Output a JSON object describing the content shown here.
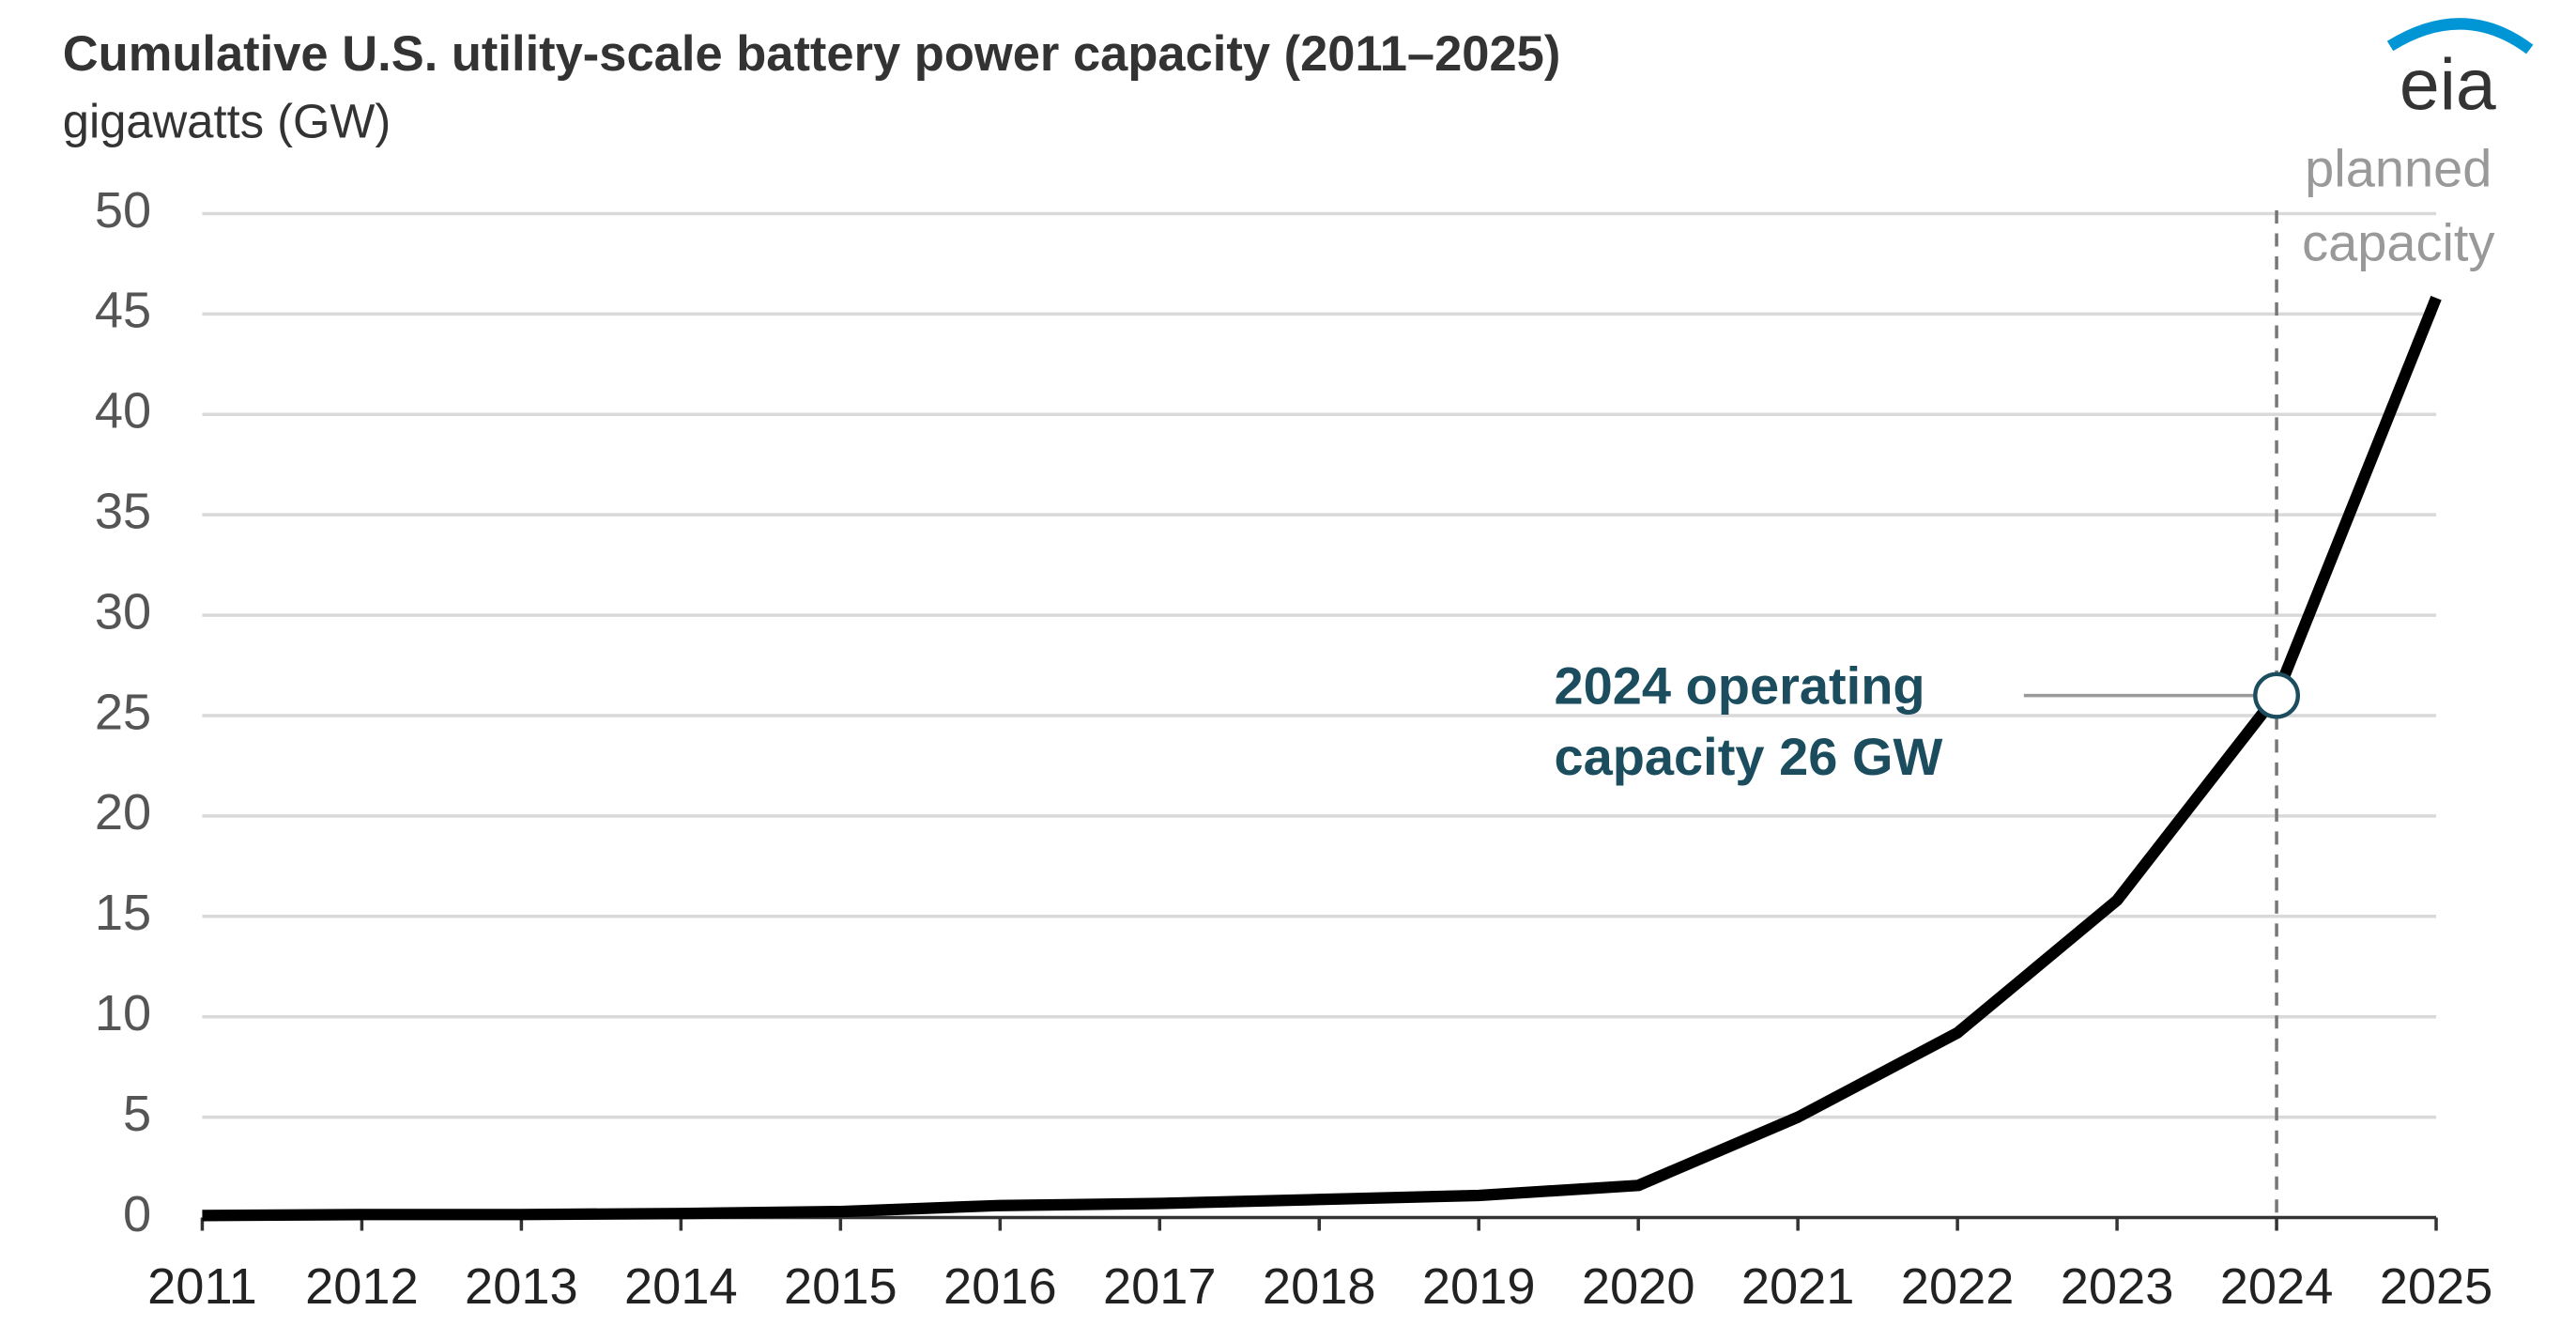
{
  "chart_data": {
    "type": "line",
    "title": "Cumulative U.S. utility-scale battery power capacity (2011–2025)",
    "subtitle": "gigawatts (GW)",
    "logo": "eia",
    "x": [
      2011,
      2012,
      2013,
      2014,
      2015,
      2016,
      2017,
      2018,
      2019,
      2020,
      2021,
      2022,
      2023,
      2024,
      2025
    ],
    "values": [
      0.1,
      0.15,
      0.15,
      0.2,
      0.3,
      0.6,
      0.7,
      0.9,
      1.1,
      1.6,
      5,
      9.2,
      15.8,
      26,
      45.8
    ],
    "color": "#000000",
    "xlim": [
      2011,
      2025
    ],
    "xticks": [
      2011,
      2012,
      2013,
      2014,
      2015,
      2016,
      2017,
      2018,
      2019,
      2020,
      2021,
      2022,
      2023,
      2024,
      2025
    ],
    "ylim": [
      0,
      50
    ],
    "yticks": [
      0,
      5,
      10,
      15,
      20,
      25,
      30,
      35,
      40,
      45,
      50
    ],
    "grid": true,
    "annotations": [
      {
        "lines": [
          "2024 operating",
          "capacity 26 GW"
        ],
        "index": 13
      },
      {
        "lines": [
          "planned",
          "capacity"
        ],
        "x": 2024
      }
    ]
  }
}
